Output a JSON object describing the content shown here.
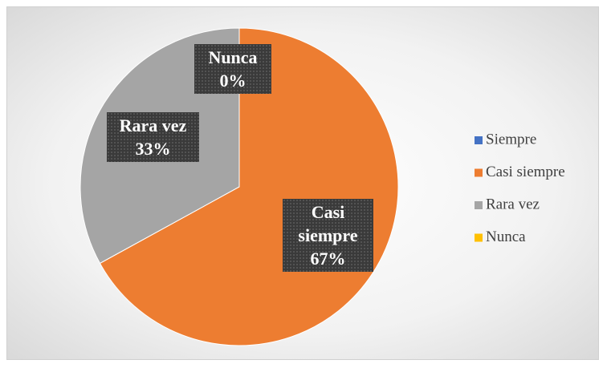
{
  "chart_data": {
    "type": "pie",
    "categories": [
      "Siempre",
      "Casi siempre",
      "Rara vez",
      "Nunca"
    ],
    "values": [
      0,
      67,
      33,
      0
    ],
    "value_labels": [
      null,
      "67%",
      "33%",
      "0%"
    ],
    "colors": [
      "#4472c4",
      "#ed7d31",
      "#a5a5a5",
      "#ffc000"
    ],
    "legend": "right"
  }
}
